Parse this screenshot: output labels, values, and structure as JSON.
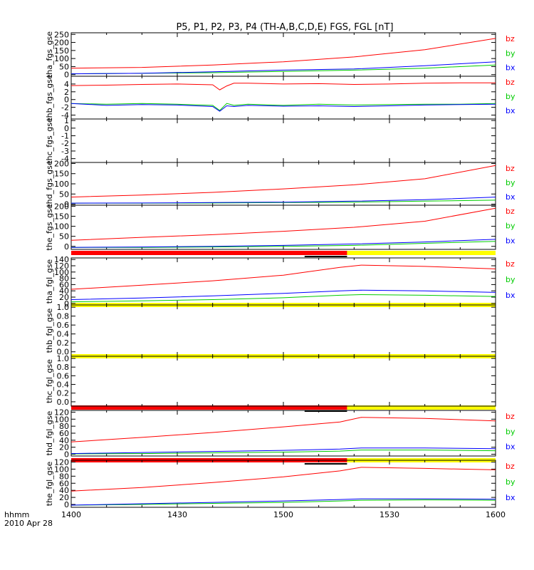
{
  "title": "P5, P1, P2, P3, P4 (TH-A,B,C,D,E) FGS, FGL [nT]",
  "time_axis": {
    "label": "hhmm",
    "date": "2010 Apr 28",
    "tick_labels": [
      "1400",
      "1430",
      "1500",
      "1530",
      "1600"
    ]
  },
  "colors": {
    "bz": "#ff0000",
    "by": "#00cc00",
    "bx": "#0000ff",
    "flag_red": "#ff0000",
    "flag_yellow": "#ffff00",
    "flag_black": "#000000"
  },
  "chart_data": [
    {
      "type": "line",
      "ylabel": "tha_fgs_gse",
      "ylim": [
        -10,
        260
      ],
      "yticks": [
        "0",
        "50",
        "100",
        "150",
        "200",
        "250"
      ],
      "y_tick_values": [
        0,
        50,
        100,
        150,
        200,
        250
      ],
      "x": [
        0,
        20,
        40,
        60,
        80,
        100,
        120
      ],
      "series": [
        {
          "name": "bz",
          "values": [
            40,
            45,
            60,
            80,
            110,
            155,
            225
          ]
        },
        {
          "name": "by",
          "values": [
            5,
            8,
            12,
            20,
            28,
            40,
            60
          ]
        },
        {
          "name": "bx",
          "values": [
            5,
            8,
            18,
            28,
            35,
            55,
            80
          ]
        }
      ]
    },
    {
      "type": "line",
      "ylabel": "thb_fgs_gse",
      "ylim": [
        -5,
        6
      ],
      "yticks": [
        "-4",
        "-2",
        "0",
        "2",
        "4"
      ],
      "y_tick_values": [
        -4,
        -2,
        0,
        2,
        4
      ],
      "x": [
        0,
        10,
        20,
        30,
        40,
        42,
        44,
        46,
        50,
        60,
        70,
        80,
        90,
        100,
        110,
        120
      ],
      "series": [
        {
          "name": "bz",
          "values": [
            3.6,
            3.7,
            3.9,
            4.0,
            3.8,
            2.5,
            3.5,
            4.2,
            4.2,
            4.0,
            4.1,
            3.9,
            4.0,
            4.2,
            4.3,
            4.3
          ]
        },
        {
          "name": "by",
          "values": [
            -1.0,
            -1.2,
            -1.0,
            -1.2,
            -1.5,
            -2.8,
            -1.0,
            -1.5,
            -1.2,
            -1.5,
            -1.2,
            -1.4,
            -1.3,
            -1.2,
            -1.2,
            -1.0
          ]
        },
        {
          "name": "bx",
          "values": [
            -1.0,
            -1.5,
            -1.3,
            -1.4,
            -1.8,
            -3.0,
            -1.6,
            -1.8,
            -1.5,
            -1.7,
            -1.6,
            -1.8,
            -1.6,
            -1.4,
            -1.3,
            -1.2
          ]
        }
      ]
    },
    {
      "type": "line",
      "ylabel": "thc_fgs_gse",
      "ylim": [
        -4.5,
        1.2
      ],
      "yticks": [
        "-4",
        "-3",
        "-2",
        "-1",
        "0",
        "1"
      ],
      "y_tick_values": [
        -4,
        -3,
        -2,
        -1,
        0,
        1
      ],
      "x": [],
      "series": []
    },
    {
      "type": "line",
      "ylabel": "thd_fgs_gse",
      "ylim": [
        -5,
        205
      ],
      "yticks": [
        "0",
        "50",
        "100",
        "150",
        "200"
      ],
      "y_tick_values": [
        0,
        50,
        100,
        150,
        200
      ],
      "x": [
        0,
        20,
        40,
        60,
        80,
        100,
        120
      ],
      "series": [
        {
          "name": "bz",
          "values": [
            35,
            45,
            58,
            75,
            95,
            125,
            190
          ]
        },
        {
          "name": "by",
          "values": [
            5,
            5,
            6,
            8,
            10,
            15,
            20
          ]
        },
        {
          "name": "bx",
          "values": [
            5,
            6,
            8,
            10,
            15,
            22,
            35
          ]
        }
      ]
    },
    {
      "type": "line",
      "ylabel": "the_fgs_gse",
      "ylim": [
        -15,
        205
      ],
      "yticks": [
        "0",
        "50",
        "100",
        "150",
        "200"
      ],
      "y_tick_values": [
        0,
        50,
        100,
        150,
        200
      ],
      "x": [
        0,
        20,
        40,
        60,
        80,
        100,
        120
      ],
      "series": [
        {
          "name": "bz",
          "values": [
            30,
            45,
            58,
            75,
            95,
            125,
            190
          ]
        },
        {
          "name": "by",
          "values": [
            -5,
            -5,
            -3,
            0,
            5,
            15,
            25
          ]
        },
        {
          "name": "bx",
          "values": [
            -5,
            -3,
            0,
            5,
            12,
            22,
            35
          ]
        }
      ],
      "bottom_flags": {
        "red_until_x": 78,
        "black_from_x": 66,
        "black_until_x": 78
      }
    },
    {
      "type": "line",
      "ylabel": "tha_fgl_gse",
      "ylim": [
        -5,
        145
      ],
      "yticks": [
        "0",
        "20",
        "40",
        "60",
        "80",
        "100",
        "120",
        "140"
      ],
      "y_tick_values": [
        0,
        20,
        40,
        60,
        80,
        100,
        120,
        140
      ],
      "x": [
        0,
        20,
        40,
        60,
        76,
        82,
        100,
        120
      ],
      "series": [
        {
          "name": "bz",
          "values": [
            45,
            58,
            72,
            90,
            115,
            122,
            118,
            110
          ]
        },
        {
          "name": "by",
          "values": [
            5,
            8,
            12,
            18,
            26,
            28,
            26,
            22
          ]
        },
        {
          "name": "bx",
          "values": [
            12,
            17,
            24,
            32,
            40,
            42,
            40,
            35
          ]
        }
      ],
      "bottom_flags": {
        "red_until_x": 0,
        "black_from_x": 0,
        "black_until_x": 0
      }
    },
    {
      "type": "line",
      "ylabel": "thb_fgl_gse",
      "ylim": [
        -0.1,
        1.05
      ],
      "yticks": [
        "0.0",
        "0.2",
        "0.4",
        "0.6",
        "0.8",
        "1.0"
      ],
      "y_tick_values": [
        0,
        0.2,
        0.4,
        0.6,
        0.8,
        1.0
      ],
      "x": [],
      "series": [],
      "bottom_flags": {
        "red_until_x": 0,
        "black_from_x": 0,
        "black_until_x": 0
      }
    },
    {
      "type": "line",
      "ylabel": "thc_fgl_gse",
      "ylim": [
        -0.1,
        1.05
      ],
      "yticks": [
        "0.0",
        "0.2",
        "0.4",
        "0.6",
        "0.8",
        "1.0"
      ],
      "y_tick_values": [
        0,
        0.2,
        0.4,
        0.6,
        0.8,
        1.0
      ],
      "x": [],
      "series": [],
      "bottom_flags": {
        "red_until_x": 78,
        "black_from_x": 66,
        "black_until_x": 78
      }
    },
    {
      "type": "line",
      "ylabel": "thd_fgl_gse",
      "ylim": [
        -5,
        125
      ],
      "yticks": [
        "0",
        "20",
        "40",
        "60",
        "80",
        "100",
        "120"
      ],
      "y_tick_values": [
        0,
        20,
        40,
        60,
        80,
        100,
        120
      ],
      "x": [
        0,
        20,
        40,
        60,
        76,
        82,
        100,
        120
      ],
      "series": [
        {
          "name": "bz",
          "values": [
            35,
            48,
            62,
            78,
            92,
            105,
            102,
            95
          ]
        },
        {
          "name": "by",
          "values": [
            1,
            2,
            4,
            6,
            9,
            12,
            12,
            10
          ]
        },
        {
          "name": "bx",
          "values": [
            2,
            5,
            8,
            11,
            15,
            18,
            18,
            16
          ]
        }
      ],
      "bottom_flags": {
        "red_until_x": 78,
        "black_from_x": 66,
        "black_until_x": 78
      }
    },
    {
      "type": "line",
      "ylabel": "the_fgl_gse",
      "ylim": [
        -8,
        125
      ],
      "yticks": [
        "0",
        "20",
        "40",
        "60",
        "80",
        "100",
        "120"
      ],
      "y_tick_values": [
        0,
        20,
        40,
        60,
        80,
        100,
        120
      ],
      "x": [
        0,
        20,
        40,
        60,
        76,
        82,
        100,
        120
      ],
      "series": [
        {
          "name": "bz",
          "values": [
            38,
            48,
            62,
            78,
            95,
            105,
            102,
            98
          ]
        },
        {
          "name": "by",
          "values": [
            -2,
            0,
            3,
            6,
            10,
            12,
            13,
            12
          ]
        },
        {
          "name": "bx",
          "values": [
            -2,
            2,
            6,
            10,
            14,
            16,
            16,
            15
          ]
        }
      ]
    }
  ]
}
